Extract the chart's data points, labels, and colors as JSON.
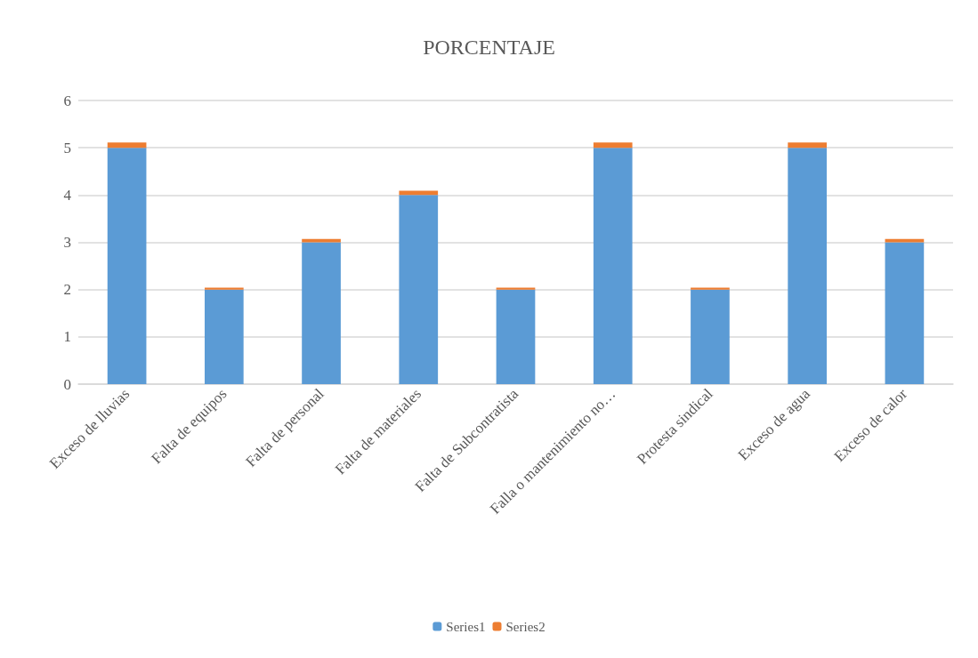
{
  "chart_data": {
    "type": "bar",
    "title": "PORCENTAJE",
    "categories": [
      "Exceso de lluvias",
      "Falta de equipos",
      "Falta de personal",
      "Falta de materiales",
      "Falta de Subcontratista",
      "Falla o mantenimiento no…",
      "Protesta sindical",
      "Exceso de agua",
      "Exceso de calor"
    ],
    "series": [
      {
        "name": "Series1",
        "color": "#5b9bd5",
        "values": [
          5,
          2,
          3,
          4,
          2,
          5,
          2,
          5,
          3
        ]
      },
      {
        "name": "Series2",
        "color": "#ed7d31",
        "values": [
          0.11,
          0.04,
          0.07,
          0.09,
          0.04,
          0.11,
          0.04,
          0.11,
          0.07
        ]
      }
    ],
    "stacked": true,
    "ylim": [
      0,
      6
    ],
    "yticks": [
      0,
      1,
      2,
      3,
      4,
      5,
      6
    ],
    "grid": "y",
    "legend": "bottom"
  }
}
